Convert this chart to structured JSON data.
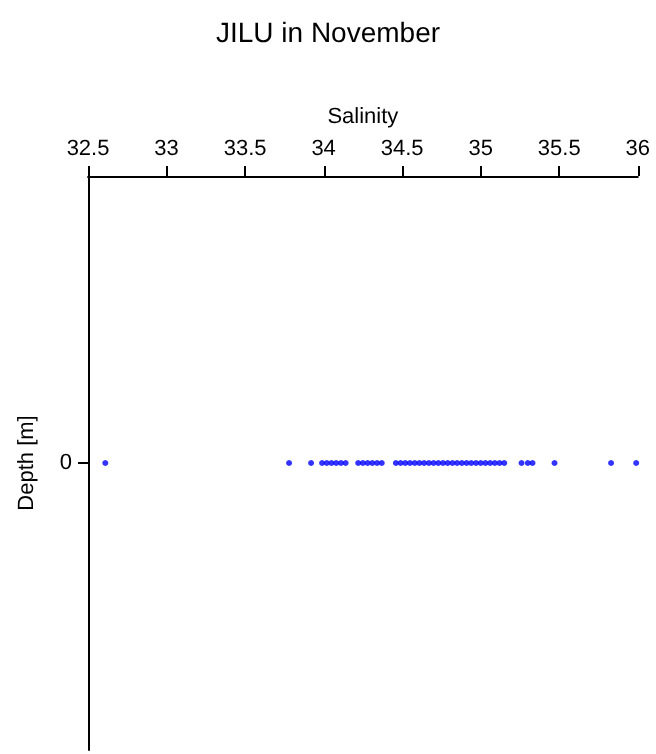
{
  "chart_data": {
    "type": "scatter",
    "orientation": "horizontal",
    "title": "JILU in November",
    "xlabel": "Salinity",
    "ylabel": "Depth [m]",
    "categories": [
      "0"
    ],
    "series": [
      {
        "color": "#0000ff",
        "x": [
          "0",
          "0",
          "0",
          "0",
          "0",
          "0",
          "0",
          "0",
          "0",
          "0",
          "0",
          "0",
          "0",
          "0",
          "0",
          "0",
          "0",
          "0",
          "0",
          "0",
          "0",
          "0",
          "0",
          "0",
          "0",
          "0",
          "0",
          "0",
          "0",
          "0",
          "0",
          "0",
          "0",
          "0",
          "0",
          "0",
          "0",
          "0",
          "0",
          "0",
          "0",
          "0",
          "0",
          "0",
          "0"
        ],
        "values": [
          32.61,
          33.78,
          33.92,
          33.99,
          34.02,
          34.05,
          34.08,
          34.11,
          34.14,
          34.22,
          34.25,
          34.28,
          34.31,
          34.34,
          34.37,
          34.46,
          34.49,
          34.52,
          34.55,
          34.58,
          34.61,
          34.64,
          34.67,
          34.7,
          34.73,
          34.76,
          34.79,
          34.82,
          34.85,
          34.88,
          34.91,
          34.94,
          34.97,
          35.0,
          35.03,
          35.06,
          35.09,
          35.12,
          35.15,
          35.26,
          35.3,
          35.33,
          35.47,
          35.83,
          35.99
        ]
      }
    ],
    "xlim": [
      32.5,
      36
    ],
    "xticks": [
      32.5,
      33,
      33.5,
      34,
      34.5,
      35,
      35.5,
      36
    ],
    "marker": "circle",
    "grid": false
  }
}
